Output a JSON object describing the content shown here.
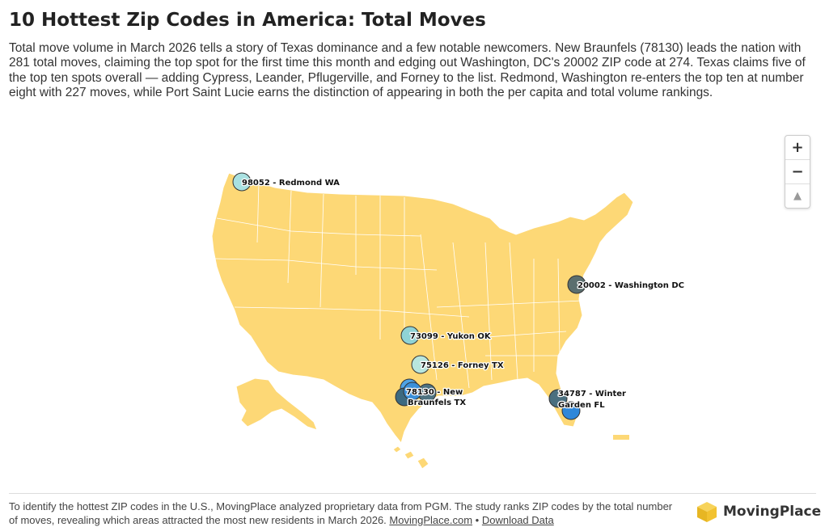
{
  "header": {
    "title": "10 Hottest Zip Codes in America: Total Moves",
    "description": "Total move volume in March 2026 tells a story of Texas dominance and a few notable newcomers. New Braunfels (78130) leads the nation with 281 total moves, claiming the top spot for the first time this month and edging out Washington, DC's 20002 ZIP code at 274. Texas claims five of the top ten spots overall — adding Cypress, Leander, Pflugerville, and Forney to the list. Redmond, Washington re-enters the top ten at number eight with 227 moves, while Port Saint Lucie earns the distinction of appearing in both the per capita and total volume rankings."
  },
  "map": {
    "land_color": "#fdd876",
    "border_color": "#ffffff",
    "zoom_in_label": "+",
    "zoom_out_label": "−",
    "compass_label": "▲",
    "markers": [
      {
        "label": "98052 - Redmond WA",
        "color": "#a9e1e1"
      },
      {
        "label": "20002 - Washington DC",
        "color": "#5b6f6f"
      },
      {
        "label": "73099 - Yukon OK",
        "color": "#8fd3d6"
      },
      {
        "label": "75126 - Forney TX",
        "color": "#b8e6de"
      },
      {
        "label_line1": "78130 - New",
        "label_line2": "Braunfels TX",
        "color": "#3a8fd8"
      },
      {
        "label_line1": "34787 - Winter",
        "label_line2": "Garden FL",
        "color": "#4a6f7f"
      },
      {
        "label": "",
        "color": "#4ea3e6"
      },
      {
        "label": "",
        "color": "#4d7280"
      },
      {
        "label": "",
        "color": "#2f87d9"
      },
      {
        "label": "",
        "color": "#3d6a80"
      }
    ]
  },
  "footer": {
    "text": "To identify the hottest ZIP codes in the U.S., MovingPlace analyzed proprietary data from PGM. The study ranks ZIP codes by the total number of moves, revealing which areas attracted the most new residents in March 2026.",
    "link1": "MovingPlace.com",
    "separator": "•",
    "link2": "Download Data"
  },
  "brand": {
    "name": "MovingPlace",
    "logo_color": "#f2c230"
  }
}
